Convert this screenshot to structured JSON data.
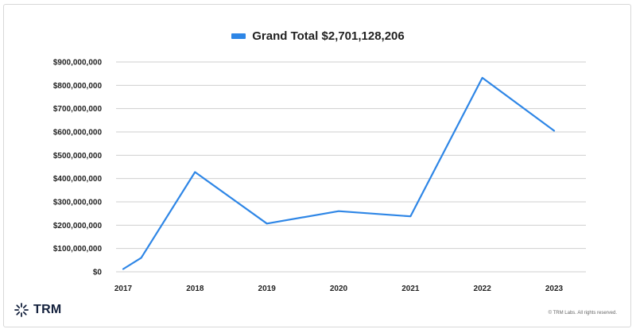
{
  "legend": {
    "label": "Grand Total $2,701,128,206",
    "color": "#2e86e6"
  },
  "chart_data": {
    "type": "line",
    "x": [
      "2017",
      "2017",
      "2018",
      "2019",
      "2020",
      "2021",
      "2022",
      "2023"
    ],
    "x_numeric": [
      2017.0,
      2017.25,
      2018.0,
      2019.0,
      2020.0,
      2021.0,
      2022.0,
      2023.0
    ],
    "xticks": [
      "2017",
      "2018",
      "2019",
      "2020",
      "2021",
      "2022",
      "2023"
    ],
    "series": [
      {
        "name": "Grand Total $2,701,128,206",
        "values": [
          12000000,
          60000000,
          428000000,
          207000000,
          260000000,
          238000000,
          832000000,
          605000000
        ],
        "color": "#2e86e6"
      }
    ],
    "yticks": [
      "$0",
      "$100,000,000",
      "$200,000,000",
      "$300,000,000",
      "$400,000,000",
      "$500,000,000",
      "$600,000,000",
      "$700,000,000",
      "$800,000,000",
      "$900,000,000"
    ],
    "ylim": [
      0,
      900000000
    ],
    "xlabel": "",
    "ylabel": "",
    "grid": true,
    "legend_position": "top-center"
  },
  "branding": {
    "logo_text": "TRM",
    "copyright": "© TRM Labs. All rights reserved."
  }
}
